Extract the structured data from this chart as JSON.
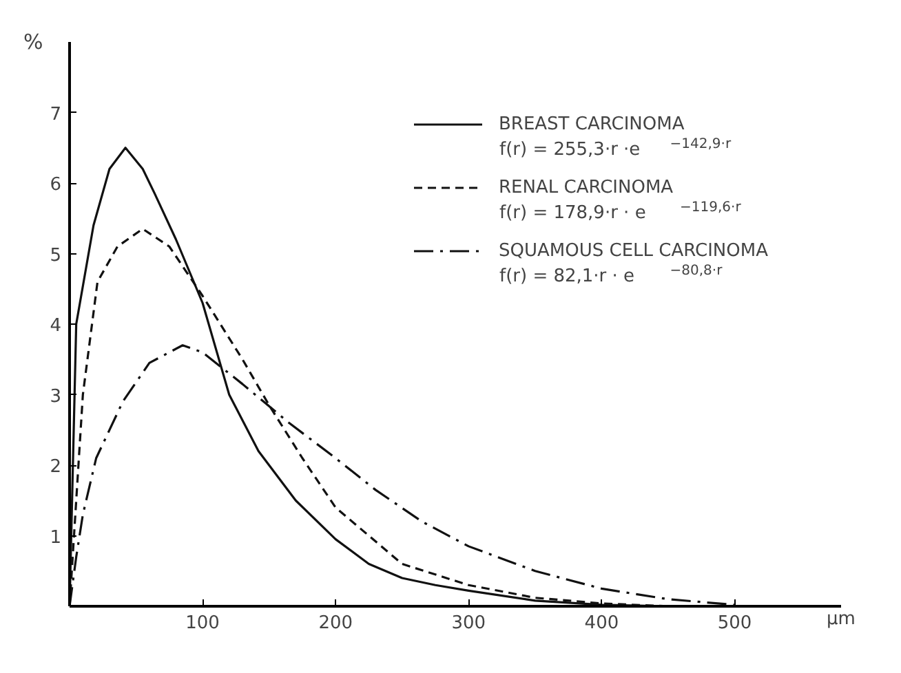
{
  "chart_data": {
    "type": "line",
    "xlabel": "µm",
    "ylabel": "%",
    "xlim": [
      0,
      580
    ],
    "ylim": [
      0,
      8
    ],
    "xticks": [
      100,
      200,
      300,
      400,
      500
    ],
    "yticks": [
      1,
      2,
      3,
      4,
      5,
      6,
      7
    ],
    "grid": false,
    "legend": "top right",
    "marker": "none",
    "series": [
      {
        "name": "BREAST CARCINOMA",
        "color": "#111111",
        "line_style": "solid",
        "x": [
          0,
          5,
          18,
          30,
          42,
          55,
          64,
          80,
          100,
          120,
          142,
          170,
          200,
          225,
          250,
          275,
          300,
          350,
          400,
          450
        ],
        "values": [
          0,
          4.0,
          5.4,
          6.2,
          6.5,
          6.2,
          5.85,
          5.2,
          4.3,
          3.0,
          2.2,
          1.5,
          0.95,
          0.6,
          0.4,
          0.3,
          0.22,
          0.08,
          0.02,
          0
        ]
      },
      {
        "name": "RENAL CARCINOMA",
        "color": "#111111",
        "line_style": "dashed",
        "x": [
          0,
          5,
          10,
          21,
          36,
          55,
          75,
          100,
          130,
          150,
          175,
          200,
          250,
          300,
          350,
          400,
          450
        ],
        "values": [
          0,
          1.5,
          3.0,
          4.6,
          5.1,
          5.35,
          5.1,
          4.4,
          3.5,
          2.85,
          2.1,
          1.4,
          0.6,
          0.3,
          0.12,
          0.04,
          0
        ]
      },
      {
        "name": "SQUAMOUS CELL CARCINOMA",
        "color": "#111111",
        "line_style": "dashdot",
        "x": [
          0,
          5,
          10,
          20,
          40,
          60,
          85,
          100,
          130,
          165,
          200,
          230,
          265,
          300,
          350,
          400,
          450,
          500
        ],
        "values": [
          0,
          0.7,
          1.3,
          2.1,
          2.9,
          3.45,
          3.7,
          3.6,
          3.15,
          2.6,
          2.1,
          1.65,
          1.2,
          0.85,
          0.5,
          0.25,
          0.1,
          0.02
        ]
      }
    ],
    "annotations": [
      "f(r) = 255,3·r ·e$^{−142,9·r}$",
      "f(r) = 178,9·r · e$^{−119,6·r}$",
      "f(r) = 82,1·r · e$^{−80,8·r}$"
    ]
  }
}
